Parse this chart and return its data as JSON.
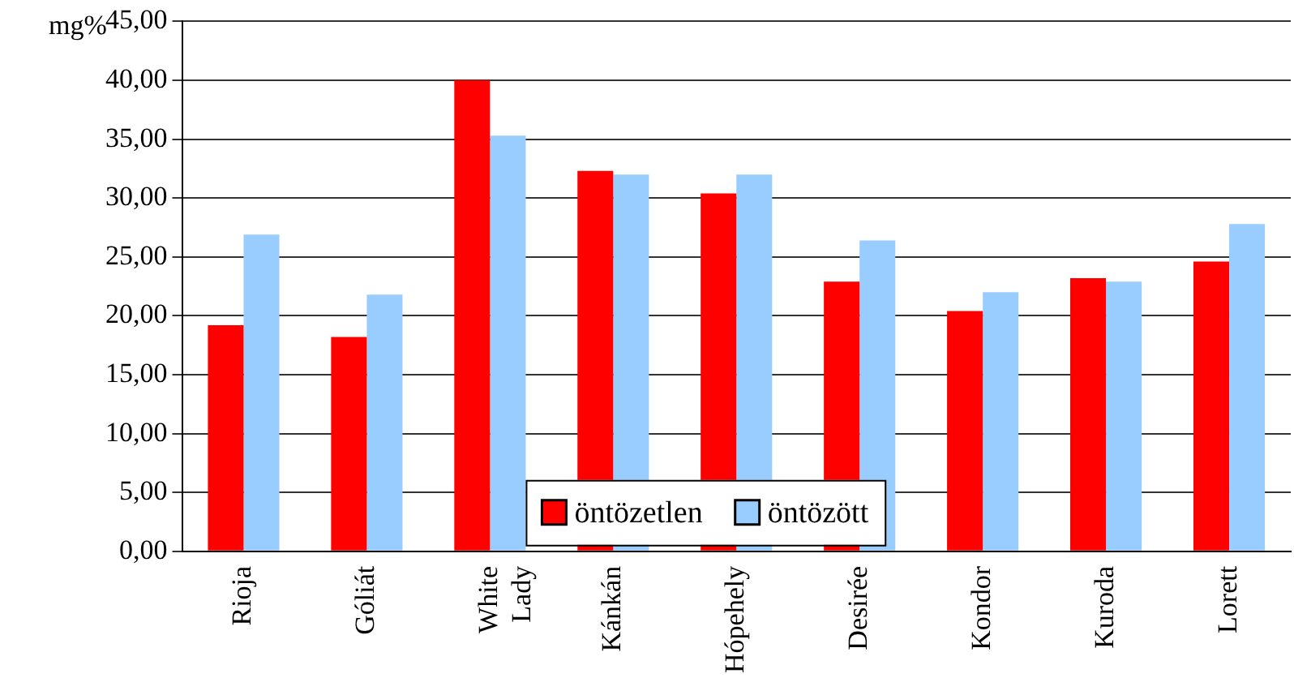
{
  "chart_data": {
    "type": "bar",
    "ylabel": "mg%",
    "categories": [
      "Rioja",
      "Góliát",
      "White Lady",
      "Kánkán",
      "Hópehely",
      "Desirée",
      "Kondor",
      "Kuroda",
      "Lorett"
    ],
    "series": [
      {
        "name": "öntözetlen",
        "color": "#ff0000",
        "values": [
          19.2,
          18.2,
          40.0,
          32.3,
          30.4,
          22.9,
          20.4,
          23.2,
          24.6
        ]
      },
      {
        "name": "öntözött",
        "color": "#99ccff",
        "values": [
          26.9,
          21.8,
          35.3,
          32.0,
          32.0,
          26.4,
          22.0,
          22.9,
          27.8
        ]
      }
    ],
    "ylim": [
      0,
      45
    ],
    "yticks": [
      {
        "value": 0,
        "label": "0,00"
      },
      {
        "value": 5,
        "label": "5,00"
      },
      {
        "value": 10,
        "label": "10,00"
      },
      {
        "value": 15,
        "label": "15,00"
      },
      {
        "value": 20,
        "label": "20,00"
      },
      {
        "value": 25,
        "label": "25,00"
      },
      {
        "value": 30,
        "label": "30,00"
      },
      {
        "value": 35,
        "label": "35,00"
      },
      {
        "value": 40,
        "label": "40,00"
      },
      {
        "value": 45,
        "label": "45,00"
      }
    ],
    "grid": "y",
    "legend": "bottom"
  }
}
